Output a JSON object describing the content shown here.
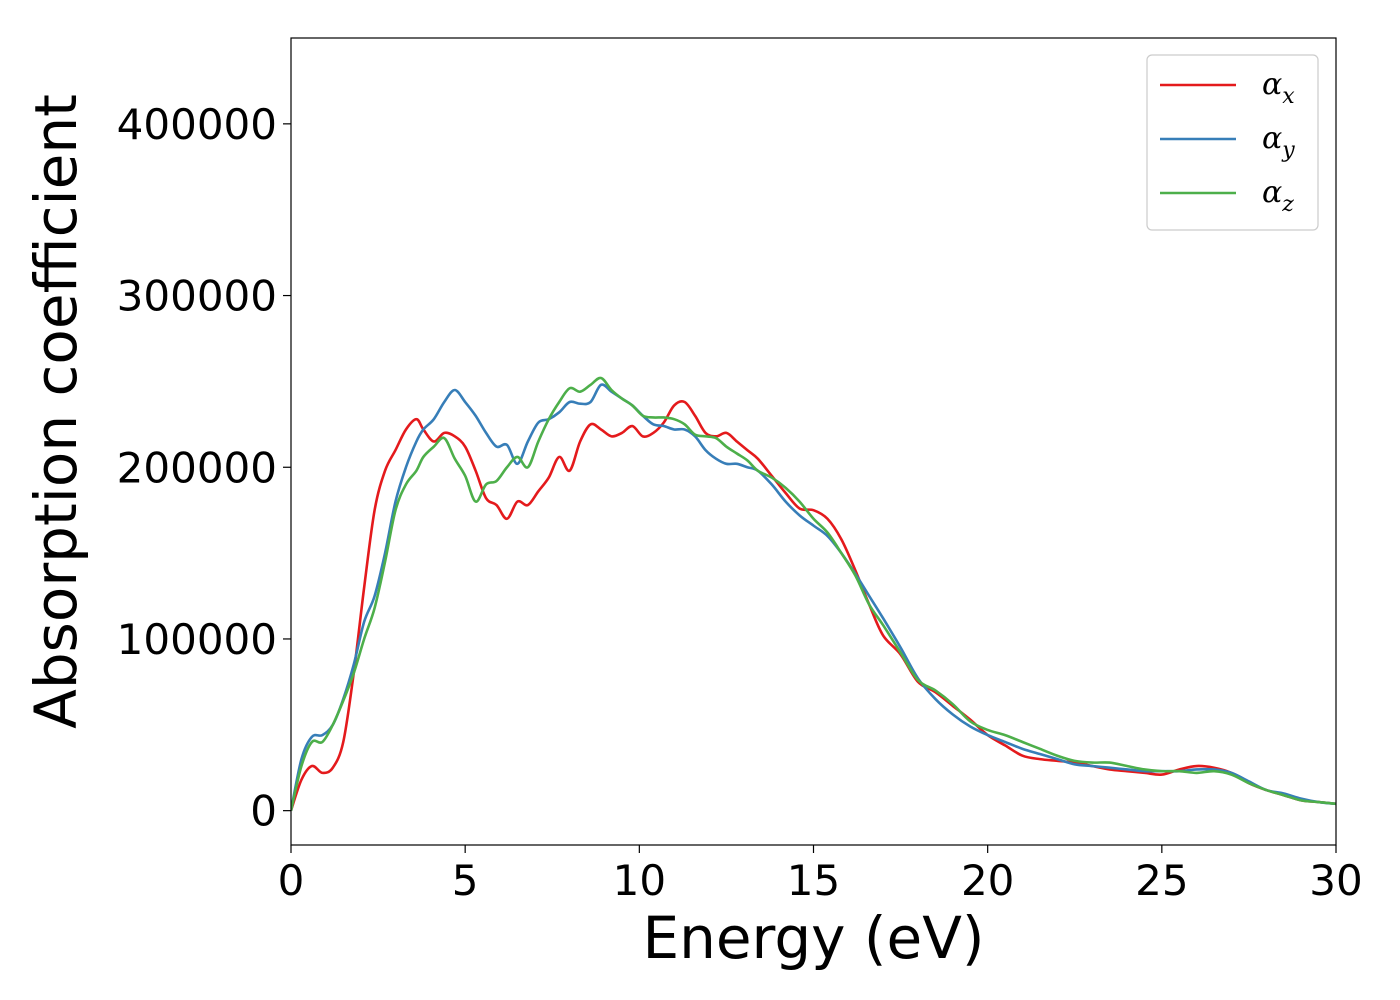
{
  "chart_data": {
    "type": "line",
    "xlabel": "Energy (eV)",
    "ylabel": "Absorption coefficient",
    "xlim": [
      0,
      30
    ],
    "ylim": [
      -20000,
      450000
    ],
    "xticks": [
      "0",
      "5",
      "10",
      "15",
      "20",
      "25",
      "30"
    ],
    "yticks": [
      "0",
      "100000",
      "200000",
      "300000",
      "400000"
    ],
    "grid": false,
    "legend_position": "top-right",
    "series": [
      {
        "name": "αx",
        "label_main": "α",
        "label_sub": "x",
        "color": "#e41a1c",
        "x": [
          0,
          0.3,
          0.6,
          0.9,
          1.2,
          1.5,
          1.8,
          2.1,
          2.4,
          2.7,
          3.0,
          3.3,
          3.6,
          3.8,
          4.1,
          4.4,
          4.7,
          5.0,
          5.3,
          5.6,
          5.9,
          6.2,
          6.5,
          6.8,
          7.1,
          7.4,
          7.7,
          8.0,
          8.3,
          8.6,
          8.9,
          9.2,
          9.5,
          9.8,
          10.1,
          10.4,
          10.7,
          11.0,
          11.3,
          11.6,
          11.9,
          12.2,
          12.5,
          12.8,
          13.1,
          13.4,
          13.8,
          14.2,
          14.6,
          15.0,
          15.4,
          15.8,
          16.2,
          16.6,
          17.0,
          17.5,
          18.0,
          18.5,
          19.0,
          19.5,
          20.0,
          20.5,
          21.0,
          21.5,
          22.0,
          22.5,
          23.0,
          23.5,
          24.0,
          24.5,
          25.0,
          25.5,
          26.0,
          26.5,
          27.0,
          27.5,
          28.0,
          28.5,
          29.0,
          29.5,
          30.0
        ],
        "y": [
          0,
          18000,
          26000,
          22000,
          25000,
          40000,
          80000,
          130000,
          175000,
          198000,
          210000,
          222000,
          228000,
          222000,
          215000,
          220000,
          218000,
          212000,
          198000,
          182000,
          178000,
          170000,
          180000,
          178000,
          186000,
          194000,
          206000,
          198000,
          215000,
          225000,
          222000,
          218000,
          220000,
          224000,
          218000,
          220000,
          226000,
          236000,
          238000,
          230000,
          220000,
          218000,
          220000,
          215000,
          210000,
          205000,
          195000,
          185000,
          176000,
          175000,
          170000,
          158000,
          140000,
          120000,
          102000,
          91000,
          75000,
          69000,
          61000,
          53000,
          44000,
          38000,
          32000,
          30000,
          29000,
          28000,
          26000,
          24000,
          23000,
          22000,
          21000,
          24000,
          26000,
          25000,
          22000,
          16000,
          12000,
          9000,
          6000,
          5000,
          4000
        ]
      },
      {
        "name": "αy",
        "label_main": "α",
        "label_sub": "y",
        "color": "#377eb8",
        "x": [
          0,
          0.3,
          0.6,
          0.9,
          1.2,
          1.5,
          1.8,
          2.1,
          2.4,
          2.7,
          3.0,
          3.3,
          3.6,
          3.8,
          4.1,
          4.4,
          4.7,
          5.0,
          5.3,
          5.6,
          5.9,
          6.2,
          6.5,
          6.8,
          7.1,
          7.4,
          7.7,
          8.0,
          8.3,
          8.6,
          8.9,
          9.2,
          9.5,
          9.8,
          10.1,
          10.4,
          10.7,
          11.0,
          11.3,
          11.6,
          11.9,
          12.2,
          12.5,
          12.8,
          13.1,
          13.4,
          13.8,
          14.2,
          14.6,
          15.0,
          15.4,
          15.8,
          16.2,
          16.6,
          17.0,
          17.5,
          18.0,
          18.5,
          19.0,
          19.5,
          20.0,
          20.5,
          21.0,
          21.5,
          22.0,
          22.5,
          23.0,
          23.5,
          24.0,
          24.5,
          25.0,
          25.5,
          26.0,
          26.5,
          27.0,
          27.5,
          28.0,
          28.5,
          29.0,
          29.5,
          30.0
        ],
        "y": [
          0,
          30000,
          43000,
          44000,
          50000,
          65000,
          85000,
          110000,
          125000,
          150000,
          180000,
          200000,
          215000,
          222000,
          228000,
          238000,
          245000,
          238000,
          230000,
          220000,
          212000,
          213000,
          202000,
          215000,
          226000,
          228000,
          232000,
          238000,
          237000,
          238000,
          248000,
          244000,
          240000,
          236000,
          230000,
          225000,
          224000,
          222000,
          222000,
          218000,
          210000,
          205000,
          202000,
          202000,
          200000,
          198000,
          190000,
          180000,
          172000,
          166000,
          160000,
          150000,
          138000,
          125000,
          112000,
          95000,
          77000,
          65000,
          56000,
          49000,
          44000,
          40000,
          36000,
          33000,
          30000,
          27000,
          26000,
          25000,
          24000,
          23000,
          23000,
          23000,
          24000,
          24000,
          22000,
          17000,
          12000,
          10000,
          7000,
          5000,
          4000
        ]
      },
      {
        "name": "αz",
        "label_main": "α",
        "label_sub": "z",
        "color": "#4daf4a",
        "x": [
          0,
          0.3,
          0.6,
          0.9,
          1.2,
          1.5,
          1.8,
          2.1,
          2.4,
          2.7,
          3.0,
          3.3,
          3.6,
          3.8,
          4.1,
          4.4,
          4.7,
          5.0,
          5.3,
          5.6,
          5.9,
          6.2,
          6.5,
          6.8,
          7.1,
          7.4,
          7.7,
          8.0,
          8.3,
          8.6,
          8.9,
          9.2,
          9.5,
          9.8,
          10.1,
          10.4,
          10.7,
          11.0,
          11.3,
          11.6,
          11.9,
          12.2,
          12.5,
          12.8,
          13.1,
          13.4,
          13.8,
          14.2,
          14.6,
          15.0,
          15.4,
          15.8,
          16.2,
          16.6,
          17.0,
          17.5,
          18.0,
          18.5,
          19.0,
          19.5,
          20.0,
          20.5,
          21.0,
          21.5,
          22.0,
          22.5,
          23.0,
          23.5,
          24.0,
          24.5,
          25.0,
          25.5,
          26.0,
          26.5,
          27.0,
          27.5,
          28.0,
          28.5,
          29.0,
          29.5,
          30.0
        ],
        "y": [
          0,
          26000,
          40000,
          40000,
          50000,
          64000,
          80000,
          100000,
          118000,
          145000,
          175000,
          190000,
          198000,
          206000,
          212000,
          217000,
          205000,
          195000,
          180000,
          190000,
          192000,
          200000,
          206000,
          200000,
          215000,
          228000,
          238000,
          246000,
          244000,
          248000,
          252000,
          245000,
          240000,
          236000,
          230000,
          229000,
          229000,
          228000,
          225000,
          219000,
          218000,
          217000,
          212000,
          208000,
          204000,
          198000,
          194000,
          188000,
          180000,
          170000,
          162000,
          150000,
          137000,
          120000,
          108000,
          92000,
          76000,
          70000,
          62000,
          52000,
          47000,
          44000,
          40000,
          36000,
          32000,
          29000,
          28000,
          28000,
          26000,
          24000,
          23000,
          23000,
          22000,
          23000,
          21000,
          16000,
          12000,
          9000,
          6000,
          5000,
          4000
        ]
      }
    ]
  }
}
